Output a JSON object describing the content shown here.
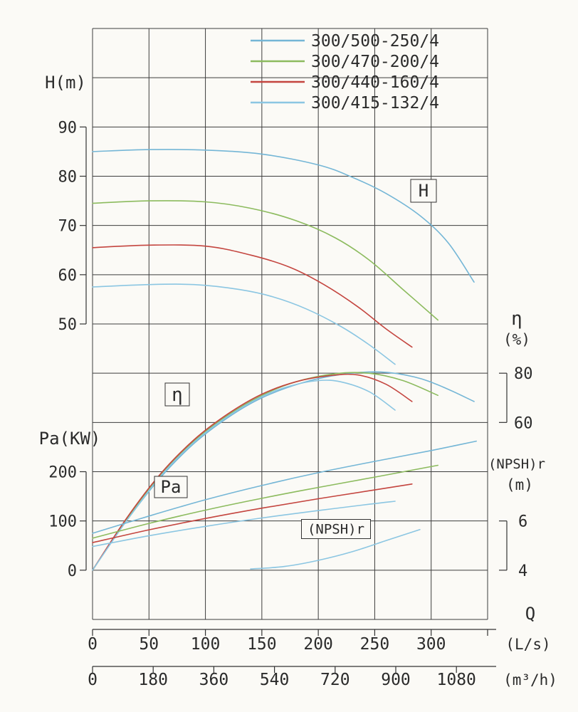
{
  "colors": {
    "grid": "#3d3d3d",
    "axis": "#333333",
    "text": "#2b2b2b",
    "background": "#fbfaf6"
  },
  "chart_data": {
    "type": "line",
    "description": "Centrifugal pump performance curves: H, efficiency, power and NPSHr versus flow",
    "legend": [
      {
        "id": "300/500-250/4",
        "label": "300/500-250/4",
        "color": "#74b6d6"
      },
      {
        "id": "300/470-200/4",
        "label": "300/470-200/4",
        "color": "#8cbb5e"
      },
      {
        "id": "300/440-160/4",
        "label": "300/440-160/4",
        "color": "#c4453f"
      },
      {
        "id": "300/415-132/4",
        "label": "300/415-132/4",
        "color": "#8bc6e2"
      }
    ],
    "axes": {
      "x_primary": {
        "title": "Q",
        "unit": "(L/s)",
        "ticks": [
          0,
          50,
          100,
          150,
          200,
          250,
          300
        ],
        "max": 350
      },
      "x_secondary": {
        "unit": "(m³/h)",
        "ticks": [
          0,
          180,
          360,
          540,
          720,
          900,
          1080
        ]
      },
      "y_H": {
        "title": "H(m)",
        "ticks": [
          90,
          80,
          70,
          60,
          50
        ]
      },
      "y_eta": {
        "title": "η",
        "unit": "(%)",
        "ticks": [
          80,
          60
        ]
      },
      "y_Pa": {
        "title": "Pa(KW)",
        "ticks": [
          200,
          100,
          0
        ]
      },
      "y_npsh": {
        "title": "(NPSH)r",
        "unit": "(m)",
        "ticks": [
          6,
          4
        ]
      }
    },
    "annotations": [
      {
        "id": "H",
        "label": "H"
      },
      {
        "id": "eta",
        "label": "η"
      },
      {
        "id": "Pa",
        "label": "Pa"
      },
      {
        "id": "npshr",
        "label": "(NPSH)r"
      }
    ],
    "series": [
      {
        "model": "300/500-250/4",
        "quantity": "H",
        "axis": "H",
        "points": [
          [
            0,
            85
          ],
          [
            50,
            85.4
          ],
          [
            100,
            85.3
          ],
          [
            150,
            84.5
          ],
          [
            200,
            82.3
          ],
          [
            230,
            79.8
          ],
          [
            260,
            76.5
          ],
          [
            290,
            72
          ],
          [
            315,
            66.5
          ],
          [
            338,
            58.5
          ]
        ]
      },
      {
        "model": "300/470-200/4",
        "quantity": "H",
        "axis": "H",
        "points": [
          [
            0,
            74.5
          ],
          [
            50,
            75
          ],
          [
            100,
            74.8
          ],
          [
            140,
            73.5
          ],
          [
            180,
            71
          ],
          [
            215,
            67.5
          ],
          [
            245,
            63
          ],
          [
            275,
            57
          ],
          [
            306,
            50.8
          ]
        ]
      },
      {
        "model": "300/440-160/4",
        "quantity": "H",
        "axis": "H",
        "points": [
          [
            0,
            65.5
          ],
          [
            50,
            66
          ],
          [
            100,
            65.8
          ],
          [
            140,
            64
          ],
          [
            175,
            61.5
          ],
          [
            205,
            58
          ],
          [
            235,
            53.5
          ],
          [
            260,
            49
          ],
          [
            283,
            45.3
          ]
        ]
      },
      {
        "model": "300/415-132/4",
        "quantity": "H",
        "axis": "H",
        "points": [
          [
            0,
            57.5
          ],
          [
            50,
            58
          ],
          [
            90,
            58
          ],
          [
            130,
            57
          ],
          [
            160,
            55.5
          ],
          [
            190,
            53
          ],
          [
            220,
            49.5
          ],
          [
            245,
            45.8
          ],
          [
            268,
            41.8
          ]
        ]
      },
      {
        "model": "300/500-250/4",
        "quantity": "eta",
        "axis": "eta",
        "points": [
          [
            0,
            0
          ],
          [
            30,
            20
          ],
          [
            60,
            37.5
          ],
          [
            90,
            51.5
          ],
          [
            120,
            62
          ],
          [
            150,
            70
          ],
          [
            185,
            76
          ],
          [
            220,
            79.5
          ],
          [
            255,
            80.5
          ],
          [
            285,
            78.5
          ],
          [
            310,
            74.5
          ],
          [
            338,
            68.5
          ]
        ]
      },
      {
        "model": "300/470-200/4",
        "quantity": "eta",
        "axis": "eta",
        "points": [
          [
            0,
            0
          ],
          [
            30,
            20.5
          ],
          [
            60,
            38.5
          ],
          [
            90,
            52.5
          ],
          [
            120,
            63
          ],
          [
            150,
            71
          ],
          [
            180,
            76.5
          ],
          [
            215,
            79.8
          ],
          [
            245,
            80
          ],
          [
            275,
            77
          ],
          [
            306,
            71
          ]
        ]
      },
      {
        "model": "300/440-160/4",
        "quantity": "eta",
        "axis": "eta",
        "points": [
          [
            0,
            0
          ],
          [
            30,
            21
          ],
          [
            60,
            39
          ],
          [
            90,
            53
          ],
          [
            120,
            63.5
          ],
          [
            150,
            71.5
          ],
          [
            180,
            76.5
          ],
          [
            210,
            79
          ],
          [
            235,
            79.3
          ],
          [
            260,
            75.5
          ],
          [
            283,
            68.5
          ]
        ]
      },
      {
        "model": "300/415-132/4",
        "quantity": "eta",
        "axis": "eta",
        "points": [
          [
            0,
            0
          ],
          [
            30,
            20
          ],
          [
            60,
            38
          ],
          [
            90,
            52
          ],
          [
            120,
            62.5
          ],
          [
            150,
            70.5
          ],
          [
            175,
            74.8
          ],
          [
            200,
            77
          ],
          [
            220,
            76.5
          ],
          [
            245,
            72.5
          ],
          [
            268,
            65
          ]
        ]
      },
      {
        "model": "300/500-250/4",
        "quantity": "Pa",
        "axis": "Pa",
        "points": [
          [
            0,
            75
          ],
          [
            50,
            110
          ],
          [
            100,
            143
          ],
          [
            150,
            172
          ],
          [
            200,
            198
          ],
          [
            250,
            221
          ],
          [
            300,
            243
          ],
          [
            340,
            262
          ]
        ]
      },
      {
        "model": "300/470-200/4",
        "quantity": "Pa",
        "axis": "Pa",
        "points": [
          [
            0,
            65
          ],
          [
            50,
            95
          ],
          [
            100,
            122
          ],
          [
            150,
            146
          ],
          [
            200,
            168
          ],
          [
            250,
            189
          ],
          [
            306,
            213
          ]
        ]
      },
      {
        "model": "300/440-160/4",
        "quantity": "Pa",
        "axis": "Pa",
        "points": [
          [
            0,
            56
          ],
          [
            50,
            82
          ],
          [
            100,
            105
          ],
          [
            150,
            126
          ],
          [
            200,
            145
          ],
          [
            250,
            163
          ],
          [
            283,
            175
          ]
        ]
      },
      {
        "model": "300/415-132/4",
        "quantity": "Pa",
        "axis": "Pa",
        "points": [
          [
            0,
            48
          ],
          [
            50,
            70
          ],
          [
            100,
            89
          ],
          [
            150,
            106
          ],
          [
            200,
            121
          ],
          [
            245,
            134
          ],
          [
            268,
            140
          ]
        ]
      },
      {
        "model": "",
        "quantity": "NPSHr",
        "axis": "NPSH",
        "color": "#8bc6e2",
        "points": [
          [
            140,
            4.05
          ],
          [
            170,
            4.15
          ],
          [
            200,
            4.4
          ],
          [
            230,
            4.75
          ],
          [
            260,
            5.2
          ],
          [
            290,
            5.65
          ]
        ]
      }
    ]
  }
}
